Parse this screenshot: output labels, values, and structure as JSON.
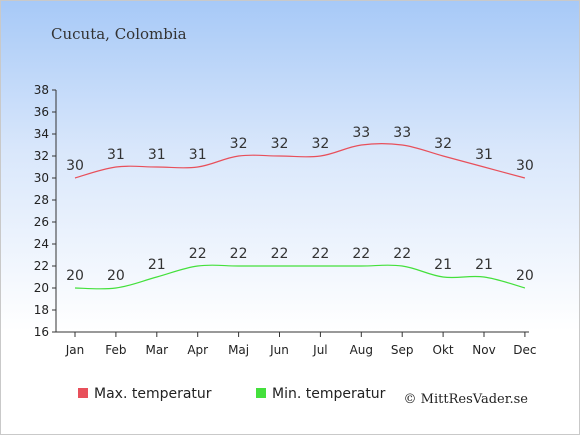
{
  "chart_data": {
    "type": "line",
    "title": "Cucuta, Colombia",
    "categories": [
      "Jan",
      "Feb",
      "Mar",
      "Apr",
      "Maj",
      "Jun",
      "Jul",
      "Aug",
      "Sep",
      "Okt",
      "Nov",
      "Dec"
    ],
    "series": [
      {
        "name": "Max. temperatur",
        "color": "#e8505b",
        "values": [
          30,
          31,
          31,
          31,
          32,
          32,
          32,
          33,
          33,
          32,
          31,
          30
        ]
      },
      {
        "name": "Min. temperatur",
        "color": "#44e03c",
        "values": [
          20,
          20,
          21,
          22,
          22,
          22,
          22,
          22,
          22,
          21,
          21,
          20
        ]
      }
    ],
    "ylim": [
      16,
      38
    ],
    "yticks": [
      16,
      18,
      20,
      22,
      24,
      26,
      28,
      30,
      32,
      34,
      36,
      38
    ],
    "grid": false,
    "legend": "bottom-left"
  },
  "credit": "© MittResVader.se"
}
